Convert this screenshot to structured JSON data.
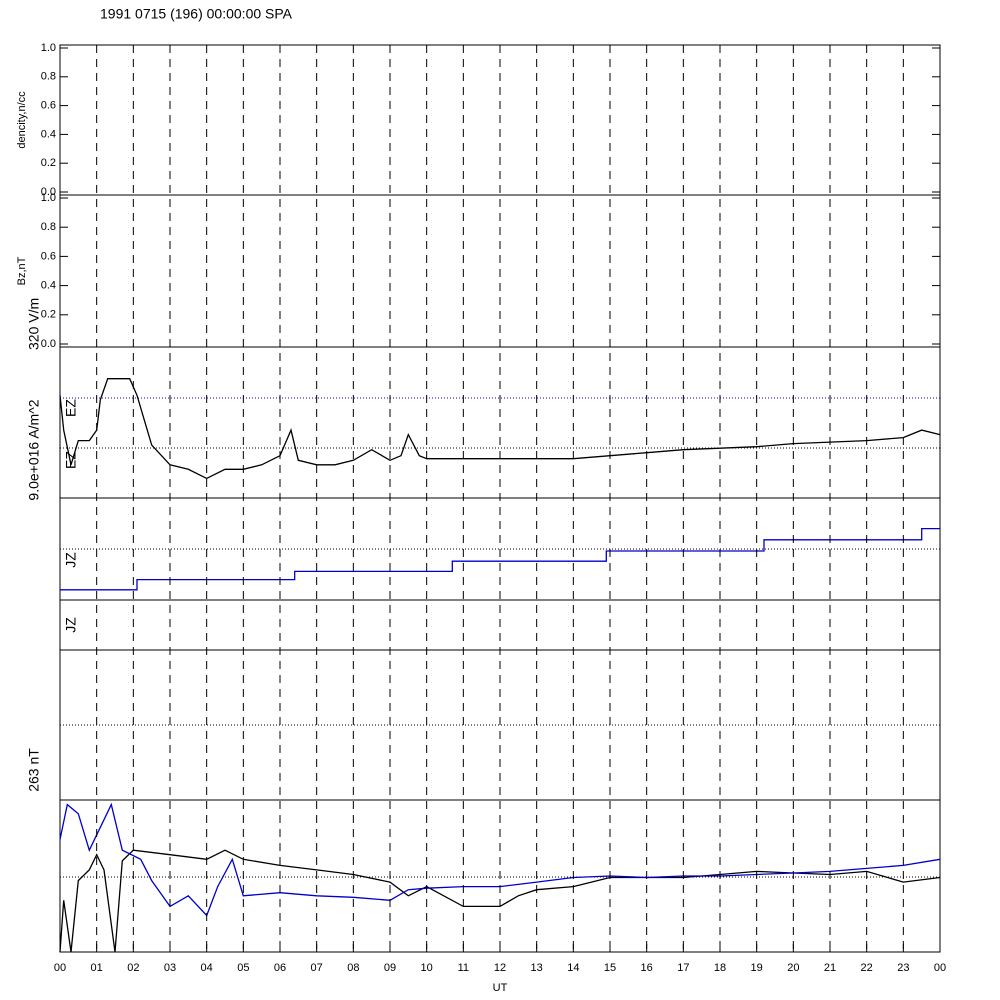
{
  "chart_data": [
    {
      "type": "line",
      "title": "1991 0715 (196) 00:00:00 SPA",
      "ylabel": "dencity,n/cc",
      "ylim": [
        0,
        1
      ],
      "yticks": [
        {
          "value": 0,
          "label": "0.0"
        },
        {
          "value": 0.2,
          "label": "0.2"
        },
        {
          "value": 0.4,
          "label": "0.4"
        },
        {
          "value": 0.6,
          "label": "0.6"
        },
        {
          "value": 0.8,
          "label": "0.8"
        },
        {
          "value": 1,
          "label": "1.0"
        }
      ]
    },
    {
      "type": "line",
      "ylabel": "Bz,nT",
      "ylim": [
        0,
        1
      ],
      "yticks": [
        {
          "value": 0,
          "label": "0.0"
        },
        {
          "value": 0.2,
          "label": "0.2"
        },
        {
          "value": 0.4,
          "label": "0.4"
        },
        {
          "value": 0.6,
          "label": "0.6"
        },
        {
          "value": 0.8,
          "label": "0.8"
        },
        {
          "value": 1,
          "label": "1.0"
        }
      ]
    },
    {
      "type": "line",
      "labels": [
        "320 V/m",
        "EZ",
        "EZ",
        "9.0e+016 A/m^2"
      ],
      "ylim": [
        0,
        1
      ],
      "series": [
        {
          "color": "#000000",
          "x": [
            0,
            0.1,
            0.3,
            0.5,
            0.8,
            1.0,
            1.1,
            1.3,
            1.9,
            2.1,
            2.5,
            3,
            3.5,
            4,
            4.5,
            5,
            5.5,
            6,
            6.3,
            6.5,
            7,
            7.5,
            8,
            8.5,
            9,
            9.3,
            9.5,
            9.8,
            10,
            11,
            12,
            13,
            14,
            15,
            16,
            17,
            18,
            19,
            20,
            21,
            22,
            23,
            23.5,
            24
          ],
          "values": [
            0.68,
            0.45,
            0.22,
            0.38,
            0.38,
            0.45,
            0.65,
            0.79,
            0.79,
            0.68,
            0.35,
            0.22,
            0.19,
            0.13,
            0.19,
            0.19,
            0.22,
            0.28,
            0.45,
            0.25,
            0.22,
            0.22,
            0.25,
            0.32,
            0.25,
            0.28,
            0.42,
            0.28,
            0.26,
            0.26,
            0.26,
            0.26,
            0.26,
            0.28,
            0.3,
            0.32,
            0.33,
            0.34,
            0.36,
            0.37,
            0.38,
            0.4,
            0.45,
            0.42
          ]
        }
      ]
    },
    {
      "type": "line",
      "labels": [
        "JZ"
      ],
      "ylim": [
        0,
        1
      ],
      "series": [
        {
          "color": "#0000cc",
          "x": [
            0,
            2.1,
            2.1,
            6.4,
            6.4,
            10.7,
            10.7,
            14.9,
            14.9,
            19.2,
            19.2,
            23.5,
            23.5,
            24
          ],
          "values": [
            0.1,
            0.1,
            0.2,
            0.2,
            0.28,
            0.28,
            0.38,
            0.38,
            0.48,
            0.48,
            0.59,
            0.59,
            0.7,
            0.7
          ]
        }
      ]
    },
    {
      "type": "line",
      "labels": [
        "JZ"
      ]
    },
    {
      "type": "line"
    },
    {
      "type": "line",
      "labels": [
        "263 nT"
      ],
      "ylim": [
        0,
        1
      ],
      "xlabel": "UT",
      "xlim": [
        0,
        24
      ],
      "xticks": [
        {
          "value": 0,
          "label": "00"
        },
        {
          "value": 1,
          "label": "01"
        },
        {
          "value": 2,
          "label": "02"
        },
        {
          "value": 3,
          "label": "03"
        },
        {
          "value": 4,
          "label": "04"
        },
        {
          "value": 5,
          "label": "05"
        },
        {
          "value": 6,
          "label": "06"
        },
        {
          "value": 7,
          "label": "07"
        },
        {
          "value": 8,
          "label": "08"
        },
        {
          "value": 9,
          "label": "09"
        },
        {
          "value": 10,
          "label": "10"
        },
        {
          "value": 11,
          "label": "11"
        },
        {
          "value": 12,
          "label": "12"
        },
        {
          "value": 13,
          "label": "13"
        },
        {
          "value": 14,
          "label": "14"
        },
        {
          "value": 15,
          "label": "15"
        },
        {
          "value": 16,
          "label": "16"
        },
        {
          "value": 17,
          "label": "17"
        },
        {
          "value": 18,
          "label": "18"
        },
        {
          "value": 19,
          "label": "19"
        },
        {
          "value": 20,
          "label": "20"
        },
        {
          "value": 21,
          "label": "21"
        },
        {
          "value": 22,
          "label": "22"
        },
        {
          "value": 23,
          "label": "23"
        },
        {
          "value": 24,
          "label": "00"
        }
      ],
      "series": [
        {
          "color": "#000000",
          "x": [
            0,
            0.1,
            0.3,
            0.5,
            0.8,
            1,
            1.2,
            1.5,
            1.7,
            2,
            3,
            4,
            4.5,
            5,
            6,
            7,
            8,
            9,
            9.5,
            10,
            11,
            12,
            12.5,
            13,
            14,
            15,
            16,
            17,
            18,
            19,
            20,
            21,
            22,
            23,
            24
          ],
          "values": [
            0,
            0.34,
            0,
            0.47,
            0.54,
            0.64,
            0.54,
            0,
            0.6,
            0.67,
            0.64,
            0.61,
            0.67,
            0.61,
            0.57,
            0.54,
            0.51,
            0.46,
            0.37,
            0.43,
            0.3,
            0.3,
            0.37,
            0.41,
            0.43,
            0.49,
            0.49,
            0.49,
            0.51,
            0.53,
            0.52,
            0.51,
            0.53,
            0.46,
            0.49
          ]
        },
        {
          "color": "#0000cc",
          "x": [
            0,
            0.2,
            0.5,
            0.8,
            1.4,
            1.7,
            2.2,
            2.5,
            3,
            3.5,
            4,
            4.3,
            4.7,
            5,
            6,
            7,
            8,
            9,
            9.5,
            10,
            11,
            12,
            13,
            14,
            15,
            16,
            17,
            18,
            19,
            20,
            21,
            22,
            23,
            24
          ],
          "values": [
            0.74,
            0.97,
            0.91,
            0.67,
            0.97,
            0.67,
            0.61,
            0.47,
            0.3,
            0.37,
            0.24,
            0.43,
            0.61,
            0.37,
            0.39,
            0.37,
            0.36,
            0.34,
            0.41,
            0.42,
            0.43,
            0.43,
            0.46,
            0.49,
            0.5,
            0.49,
            0.5,
            0.5,
            0.51,
            0.52,
            0.53,
            0.55,
            0.57,
            0.61
          ]
        }
      ]
    }
  ]
}
